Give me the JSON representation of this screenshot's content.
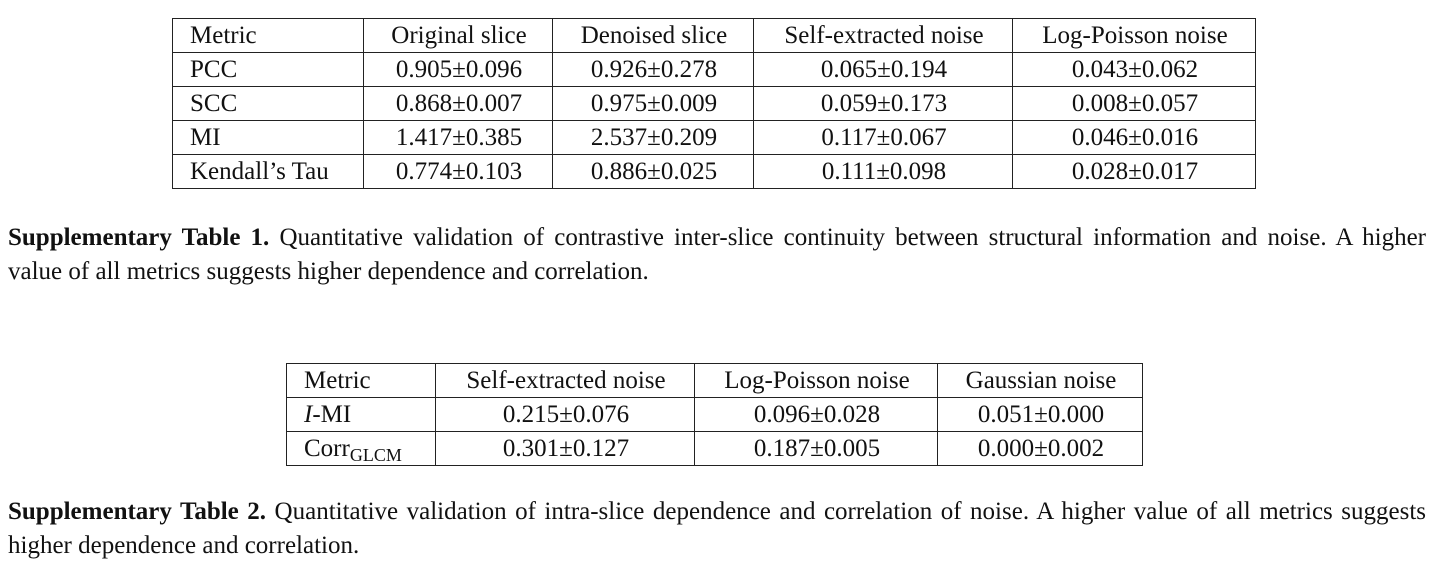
{
  "tables": [
    {
      "header": [
        "Metric",
        "Original slice",
        "Denoised slice",
        "Self-extracted noise",
        "Log-Poisson noise"
      ],
      "rows": [
        [
          {
            "text": "PCC"
          },
          "0.905±0.096",
          "0.926±0.278",
          "0.065±0.194",
          "0.043±0.062"
        ],
        [
          {
            "text": "SCC"
          },
          "0.868±0.007",
          "0.975±0.009",
          "0.059±0.173",
          "0.008±0.057"
        ],
        [
          {
            "text": "MI"
          },
          "1.417±0.385",
          "2.537±0.209",
          "0.117±0.067",
          "0.046±0.016"
        ],
        [
          {
            "text": "Kendall’s Tau"
          },
          "0.774±0.103",
          "0.886±0.025",
          "0.111±0.098",
          "0.028±0.017"
        ]
      ],
      "caption": {
        "label": "Supplementary Table 1.",
        "text": "Quantitative validation of contrastive inter-slice continuity between structural information and noise. A higher value of all metrics suggests higher dependence and correlation."
      }
    },
    {
      "header": [
        "Metric",
        "Self-extracted noise",
        "Log-Poisson noise",
        "Gaussian noise"
      ],
      "rows": [
        [
          {
            "italic": "I",
            "rest": "-MI"
          },
          "0.215±0.076",
          "0.096±0.028",
          "0.051±0.000"
        ],
        [
          {
            "base": "Corr",
            "sub": "GLCM"
          },
          "0.301±0.127",
          "0.187±0.005",
          "0.000±0.002"
        ]
      ],
      "caption": {
        "label": "Supplementary Table 2.",
        "text": "Quantitative validation of intra-slice dependence and correlation of noise.  A higher value of all metrics suggests higher dependence and correlation."
      }
    }
  ]
}
